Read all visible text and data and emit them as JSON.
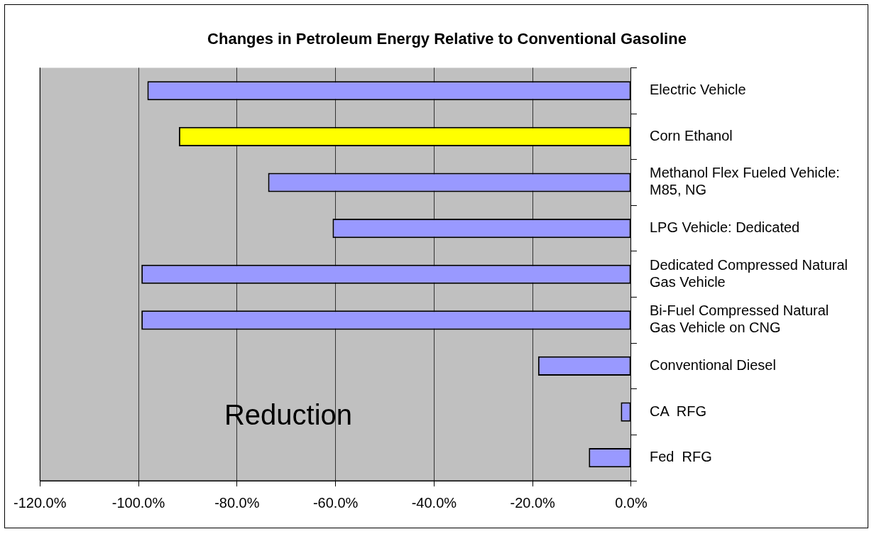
{
  "chart_data": {
    "type": "bar",
    "orientation": "horizontal",
    "title": "Changes in Petroleum Energy Relative to Conventional Gasoline",
    "categories": [
      "Electric Vehicle",
      "Corn Ethanol",
      "Methanol Flex Fueled Vehicle: M85, NG",
      "LPG Vehicle: Dedicated",
      "Dedicated Compressed Natural Gas Vehicle",
      "Bi-Fuel Compressed Natural Gas Vehicle on CNG",
      "Conventional Diesel",
      "CA  RFG",
      "Fed  RFG"
    ],
    "values": [
      -98.2,
      -91.8,
      -73.7,
      -60.6,
      -99.4,
      -99.4,
      -18.9,
      -2.1,
      -8.6
    ],
    "colors": [
      "#9999ff",
      "#ffff00",
      "#9999ff",
      "#9999ff",
      "#9999ff",
      "#9999ff",
      "#9999ff",
      "#9999ff",
      "#9999ff"
    ],
    "xlim": [
      -120,
      0
    ],
    "xticks": [
      {
        "value": -120,
        "label": "-120.0%"
      },
      {
        "value": -100,
        "label": "-100.0%"
      },
      {
        "value": -80,
        "label": "-80.0%"
      },
      {
        "value": -60,
        "label": "-60.0%"
      },
      {
        "value": -40,
        "label": "-40.0%"
      },
      {
        "value": -20,
        "label": "-20.0%"
      },
      {
        "value": 0,
        "label": "0.0%"
      }
    ],
    "grid": "x",
    "legend": false,
    "annotations": [
      "Reduction"
    ]
  }
}
